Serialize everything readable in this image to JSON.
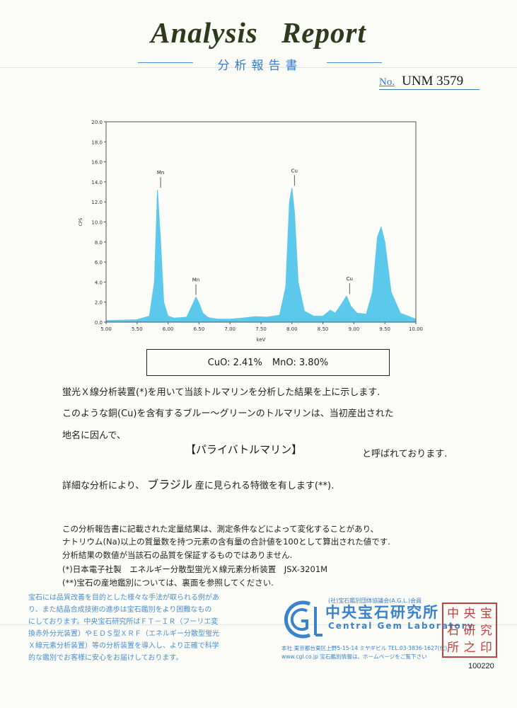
{
  "report": {
    "title": "Analysis Report",
    "subtitle": "分析報告書",
    "number_label": "No.",
    "number": "UNM 3579"
  },
  "chart_data": {
    "type": "line",
    "xlabel": "keV",
    "ylabel": "CPS",
    "xlim": [
      5.0,
      10.0
    ],
    "ylim": [
      0.0,
      20.0
    ],
    "xticks": [
      "5.00",
      "5.50",
      "6.00",
      "6.50",
      "7.00",
      "7.50",
      "8.00",
      "8.50",
      "9.00",
      "9.50",
      "10.00"
    ],
    "yticks": [
      "0.0",
      "2.0",
      "4.0",
      "6.0",
      "8.0",
      "10.0",
      "12.0",
      "14.0",
      "16.0",
      "18.0",
      "20.0"
    ],
    "grid": false,
    "fill_color": "#5cc8ec",
    "series": [
      {
        "x": [
          5.0,
          5.5,
          5.7,
          5.78,
          5.83,
          5.88,
          5.93,
          6.0,
          6.1,
          6.3,
          6.4,
          6.45,
          6.5,
          6.56,
          6.65,
          6.8,
          7.0,
          7.2,
          7.4,
          7.6,
          7.8,
          7.9,
          7.96,
          8.0,
          8.04,
          8.1,
          8.2,
          8.35,
          8.5,
          8.62,
          8.7,
          8.8,
          8.88,
          8.95,
          9.05,
          9.2,
          9.3,
          9.38,
          9.44,
          9.5,
          9.6,
          9.75,
          10.0
        ],
        "y": [
          0.15,
          0.25,
          0.6,
          4.0,
          13.2,
          8.0,
          2.0,
          0.6,
          0.4,
          0.5,
          1.8,
          2.5,
          1.9,
          0.9,
          0.45,
          0.3,
          0.3,
          0.4,
          0.55,
          0.5,
          0.7,
          3.5,
          12.0,
          13.4,
          11.0,
          4.0,
          1.1,
          0.6,
          0.6,
          1.2,
          0.9,
          1.8,
          2.6,
          1.6,
          0.9,
          0.8,
          3.0,
          8.5,
          9.5,
          8.0,
          3.0,
          0.9,
          0.3
        ]
      }
    ],
    "annotations": [
      {
        "label": "Mn",
        "x": 5.88,
        "y": 13.2
      },
      {
        "label": "Mn",
        "x": 6.45,
        "y": 2.5
      },
      {
        "label": "Cu",
        "x": 8.04,
        "y": 13.4
      },
      {
        "label": "Cu",
        "x": 8.93,
        "y": 2.6
      }
    ]
  },
  "result": {
    "cuo": "CuO: 2.41%",
    "mno": "MnO: 3.80%"
  },
  "body": {
    "line1": "蛍光Ｘ線分析装置(*)を用いて当該トルマリンを分析した結果を上に示します.",
    "line2": "このような銅(Cu)を含有するブルー～グリーンのトルマリンは、当初産出された",
    "line3": "地名に因んで、",
    "stone_name": "【パライバトルマリン】",
    "line4_suffix": "と呼ばれております.",
    "line5_prefix": "詳細な分析により、",
    "origin": "ブラジル",
    "line5_suffix": "産に見られる特徴を有します(**)."
  },
  "notes": {
    "n1": "この分析報告書に記載された定量結果は、測定条件などによって変化することがあり、",
    "n2": "ナトリウム(Na)以上の質量数を持つ元素の含有量の合計値を100として算出された値です.",
    "n3": "分析結果の数値が当該石の品質を保証するものではありません.",
    "n4": "(*)日本電子社製　エネルギー分散型蛍光Ｘ線元素分析装置　JSX-3201M",
    "n5": "(**)宝石の産地鑑別については、裏面を参照してください."
  },
  "disclaimer": {
    "l1": "宝石には品質改善を目的とした様々な手法が取られる例があ",
    "l2": "り、また結晶合成技術の進歩は宝石鑑別をより困難なもの",
    "l3": "にしております。中央宝石研究所はＦＴ－ＩＲ（フーリエ変",
    "l4": "換赤外分光装置）やＥＤＳ型ＸＲＦ（エネルギー分散型蛍光",
    "l5": "Ｘ線元素分析装置）等の分析装置を導入し、より正確で科学",
    "l6": "的な鑑別でお客様に安心をお届けしております。"
  },
  "lab": {
    "agl": "(社)宝石鑑別団体協議会(A.G.L.)会員",
    "name_jp": "中央宝石研究所",
    "name_en": "Central Gem Laboratory",
    "address": "本社 東京都台東区上野5-15-14 ミヤギビル TEL.03-3836-1627(代)",
    "web": "www.cgl.co.jp 宝石鑑別情報は、ホームページをご覧下さい",
    "seal_chars": [
      "中",
      "央",
      "宝",
      "石",
      "研",
      "究",
      "所",
      "之",
      "印"
    ],
    "serial": "100220",
    "brand_color": "#3a82c9",
    "seal_color": "#c4413f"
  }
}
